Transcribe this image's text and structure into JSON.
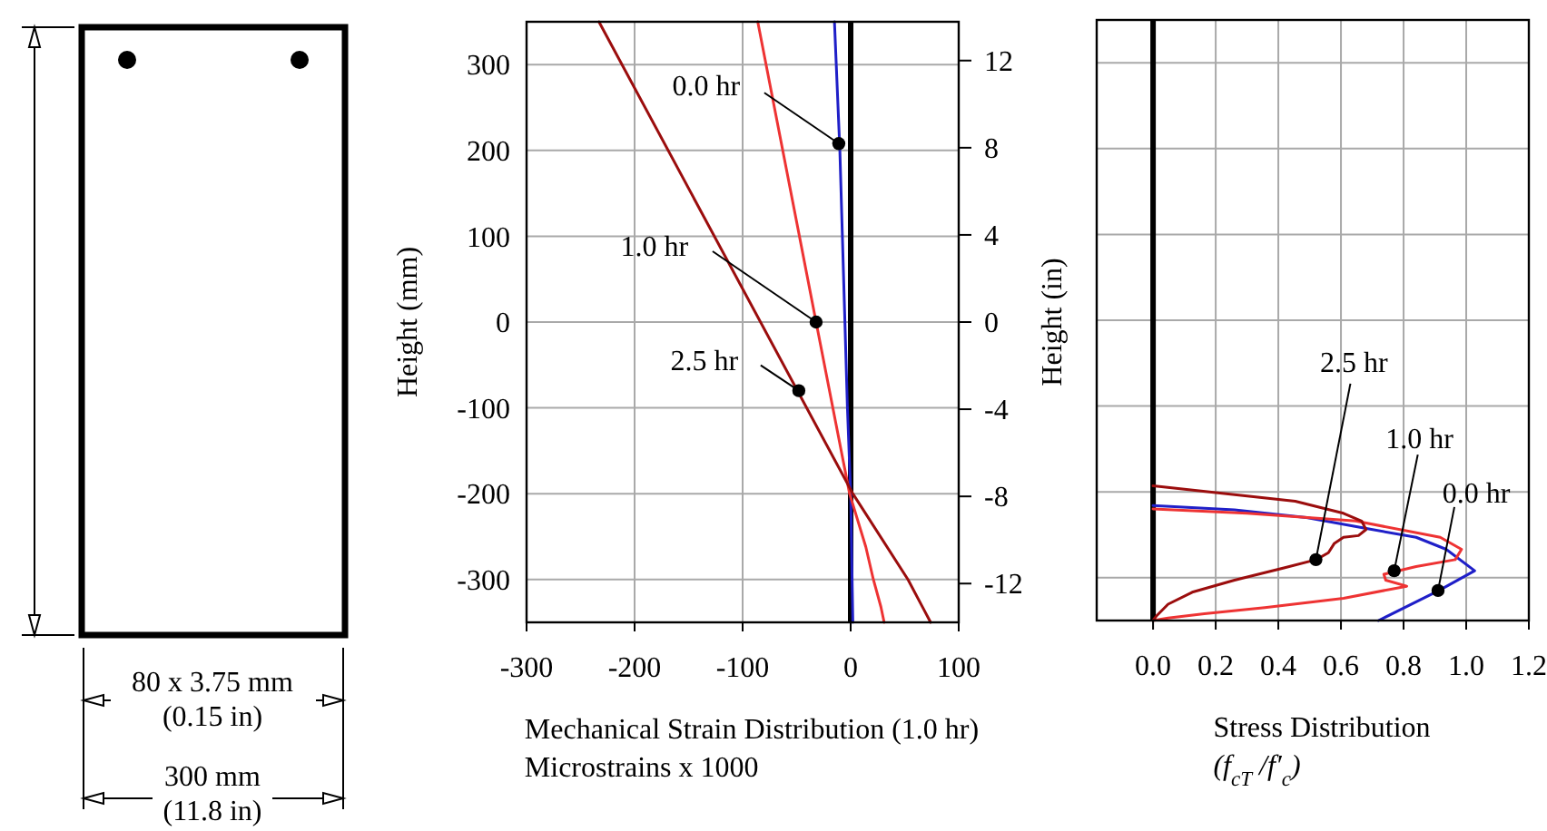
{
  "chart_data": [
    {
      "type": "other",
      "annotations": [
        "80 x 3.75 mm\n(0.15 in)",
        "300 mm\n(11.8 in)"
      ]
    },
    {
      "type": "line",
      "xlabel": "Mechanical Strain Distribution (1.0 hr)\nMicrostrains x 1000",
      "ylabel": "Height (mm)",
      "y2label": "Height (in)",
      "xlim": [
        -300,
        100
      ],
      "xticks": [
        -300,
        -200,
        -100,
        0,
        100
      ],
      "ylim": [
        -350,
        350
      ],
      "yticks": [
        -300,
        -200,
        -100,
        0,
        100,
        200,
        300
      ],
      "y2lim": [
        -13.78,
        13.78
      ],
      "y2ticks": [
        -12,
        -8,
        -4,
        0,
        4,
        8,
        12
      ],
      "grid": true,
      "ref_lines": [
        {
          "axis": "x",
          "value": 0,
          "color": "#000000"
        }
      ],
      "series": [
        {
          "color": "#1f1fc8",
          "x": [
            -15,
            -10,
            -3,
            0,
            2
          ],
          "values": [
            350,
            200,
            -100,
            -200,
            -350
          ]
        },
        {
          "color": "#ee3333",
          "x": [
            -86,
            -32,
            -1,
            14,
            21,
            28,
            31
          ],
          "values": [
            350,
            0,
            -200,
            -262,
            -300,
            -332,
            -350
          ]
        },
        {
          "color": "#9b0d0d",
          "x": [
            -233,
            2,
            53,
            74
          ],
          "values": [
            350,
            -200,
            -300,
            -350
          ]
        }
      ],
      "annotations": [
        {
          "text": "0.0 hr",
          "x": -11,
          "y": 208
        },
        {
          "text": "1.0 hr",
          "x": -32,
          "y": 0
        },
        {
          "text": "2.5 hr",
          "x": -48,
          "y": -80
        }
      ]
    },
    {
      "type": "line",
      "xlabel": "Stress Distribution\n(f$_{cT}$ /f′$_{c}$)",
      "xlim": [
        -0.18,
        1.2
      ],
      "xticks": [
        {
          "value": 0,
          "label": "0.0"
        },
        0.2,
        0.4,
        0.6,
        0.8,
        {
          "value": 1,
          "label": "1.0"
        },
        1.2
      ],
      "ylim": [
        -350,
        350
      ],
      "yticks": [
        -300,
        -200,
        -100,
        0,
        100,
        200,
        300
      ],
      "tick_labels": "x",
      "grid": true,
      "ref_lines": [
        {
          "axis": "x",
          "value": 0,
          "color": "#000000"
        }
      ],
      "series": [
        {
          "color": "#1f1fc8",
          "x": [
            0,
            0.26,
            0.49,
            0.685,
            0.84,
            0.936,
            1.027,
            0.913,
            0.72
          ],
          "values": [
            -216,
            -221,
            -230,
            -243,
            -253,
            -267,
            -292,
            -315,
            -350
          ]
        },
        {
          "color": "#ee3333",
          "x": [
            0,
            0.3,
            0.647,
            0.917,
            0.985,
            0.965,
            0.84,
            0.737,
            0.743,
            0.81,
            0.608,
            0.357,
            0.164,
            0.048,
            0
          ],
          "values": [
            -220,
            -225,
            -234,
            -253,
            -267,
            -279,
            -287,
            -296,
            -303,
            -310,
            -324,
            -335,
            -342,
            -347,
            -350
          ]
        },
        {
          "color": "#9b0d0d",
          "x": [
            0,
            0.454,
            0.608,
            0.666,
            0.68,
            0.656,
            0.608,
            0.579,
            0.56,
            0.521,
            0.415,
            0.26,
            0.125,
            0.048,
            0.01,
            0
          ],
          "values": [
            -193,
            -211,
            -225,
            -234,
            -244,
            -251,
            -253,
            -260,
            -271,
            -279,
            -289,
            -303,
            -317,
            -331,
            -345,
            -350
          ]
        }
      ],
      "annotations": [
        {
          "text": "2.5 hr",
          "x": 0.52,
          "y": -279
        },
        {
          "text": "1.0 hr",
          "x": 0.77,
          "y": -292
        },
        {
          "text": "0.0 hr",
          "x": 0.91,
          "y": -315
        }
      ]
    }
  ]
}
